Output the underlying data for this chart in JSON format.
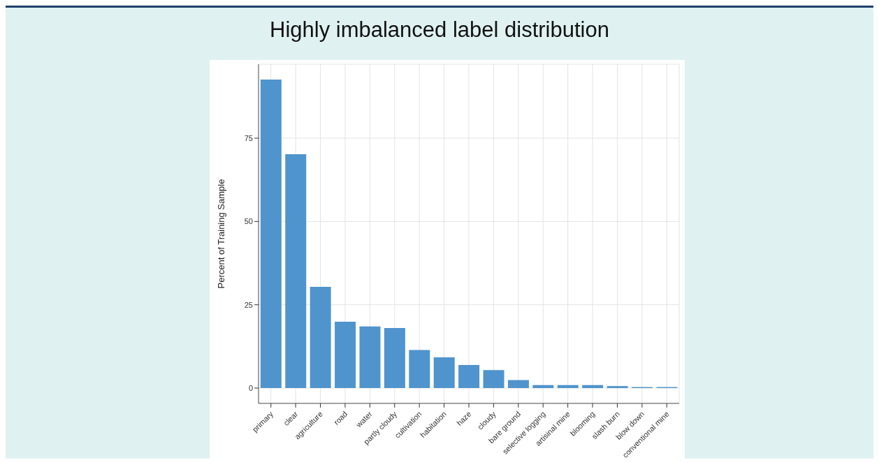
{
  "chart_data": {
    "type": "bar",
    "title": "Highly imbalanced label distribution",
    "ylabel": "Percent of Training Sample",
    "categories": [
      "primary",
      "clear",
      "agriculture",
      "road",
      "water",
      "partly cloudy",
      "cultivation",
      "habitation",
      "haze",
      "cloudy",
      "bare ground",
      "selective logging",
      "artisinal mine",
      "blooming",
      "slash burn",
      "blow down",
      "conventional mine"
    ],
    "values": [
      92.6,
      70.2,
      30.4,
      19.9,
      18.5,
      18.0,
      11.4,
      9.2,
      6.9,
      5.4,
      2.4,
      0.9,
      0.9,
      0.9,
      0.6,
      0.3,
      0.3
    ],
    "color": "#4f94cd",
    "ylim": [
      -4.6,
      97.2
    ],
    "yticks": [
      0,
      25,
      50,
      75
    ],
    "grid": true
  }
}
